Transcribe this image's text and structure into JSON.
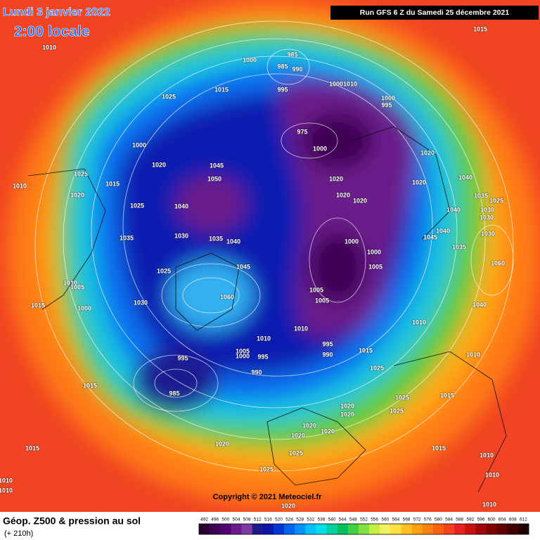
{
  "header": {
    "date": "Lundi 3 janvier 2022",
    "time": "2:00 locale",
    "run": "Run GFS 6 Z du Samedi 25 décembre 2021"
  },
  "copyright": "Copyright © 2021 Meteociel.fr",
  "footer": {
    "title": "Géop. Z500 & pression au sol",
    "lead": "(+ 210h)"
  },
  "legend": {
    "ticks": [
      492,
      496,
      500,
      504,
      508,
      512,
      516,
      520,
      524,
      528,
      532,
      536,
      540,
      544,
      548,
      552,
      556,
      560,
      564,
      568,
      572,
      576,
      580,
      584,
      588,
      592,
      596,
      600,
      604,
      608,
      612
    ],
    "colors": [
      "#2a0030",
      "#3c0052",
      "#520070",
      "#6a1a8a",
      "#7c3aa2",
      "#1e1a86",
      "#0c14aa",
      "#0034d2",
      "#0062f0",
      "#0092ff",
      "#00c0ff",
      "#00e0e6",
      "#00d0a0",
      "#00c060",
      "#40d040",
      "#84e040",
      "#c4f040",
      "#f2f060",
      "#ffe040",
      "#ffc020",
      "#ffa010",
      "#ff8010",
      "#ff6010",
      "#f84020",
      "#e82020",
      "#c81010",
      "#a00808",
      "#800000",
      "#600000",
      "#400000",
      "#200000"
    ]
  },
  "isobar_labels": [
    1010,
    1015,
    985,
    985,
    990,
    1000,
    995,
    1015,
    1025,
    1000,
    1010,
    1000,
    995,
    975,
    1000,
    1000,
    1020,
    1045,
    1050,
    1025,
    1020,
    1015,
    1010,
    1025,
    1040,
    1020,
    1020,
    1020,
    1020,
    1040,
    1035,
    1025,
    1030,
    1030,
    1040,
    1020,
    1030,
    1035,
    1035,
    1040,
    1045,
    1000,
    1000,
    1005,
    1045,
    1040,
    1035,
    1030,
    1060,
    1025,
    1010,
    1005,
    1015,
    1000,
    1030,
    1060,
    1005,
    1005,
    1040,
    1010,
    1010,
    995,
    990,
    1015,
    1010,
    1010,
    995,
    1005,
    1000,
    995,
    985,
    990,
    1025,
    1015,
    1025,
    1015,
    1020,
    1020,
    1025,
    1020,
    1020,
    1020,
    1020,
    1025,
    1015,
    1015,
    1010,
    1025,
    1010,
    1010,
    1010,
    1020,
    1010
  ]
}
